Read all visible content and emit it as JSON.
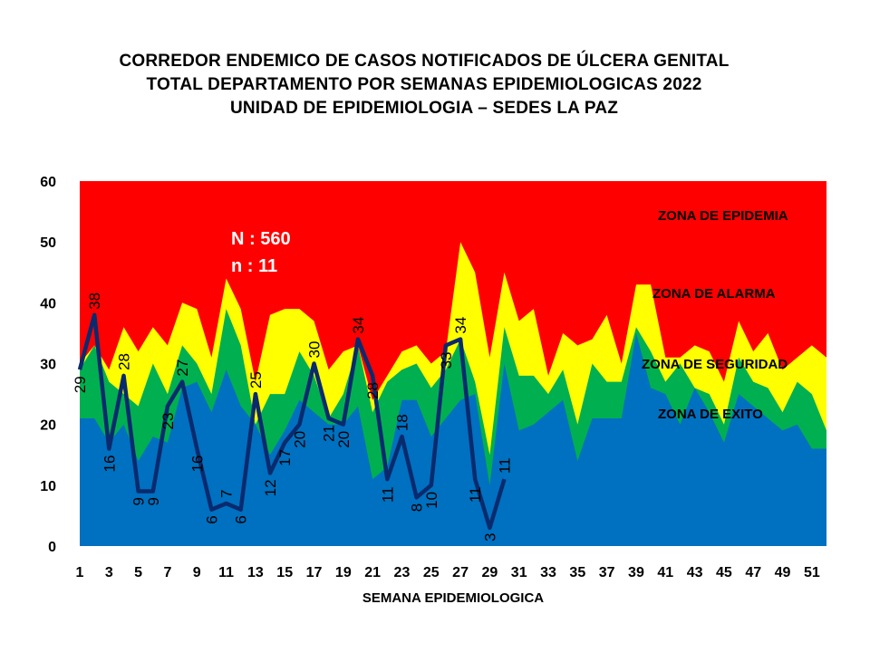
{
  "header": {
    "line1": "CORREDOR ENDEMICO  DE CASOS NOTIFICADOS  DE ÚLCERA GENITAL",
    "line2": "TOTAL DEPARTAMENTO  POR SEMANAS  EPIDEMIOLOGICAS  2022",
    "line3": "UNIDAD  DE EPIDEMIOLOGIA  – SEDES LA PAZ"
  },
  "chart_data": {
    "type": "area",
    "xlabel": "SEMANA EPIDEMIOLOGICA",
    "ylabel": "",
    "ylim": [
      0,
      60
    ],
    "yticks": [
      0,
      10,
      20,
      30,
      40,
      50,
      60
    ],
    "xticks": [
      1,
      3,
      5,
      7,
      9,
      11,
      13,
      15,
      17,
      19,
      21,
      23,
      25,
      27,
      29,
      31,
      33,
      35,
      37,
      39,
      41,
      43,
      45,
      47,
      49,
      51
    ],
    "x": [
      1,
      2,
      3,
      4,
      5,
      6,
      7,
      8,
      9,
      10,
      11,
      12,
      13,
      14,
      15,
      16,
      17,
      18,
      19,
      20,
      21,
      22,
      23,
      24,
      25,
      26,
      27,
      28,
      29,
      30,
      31,
      32,
      33,
      34,
      35,
      36,
      37,
      38,
      39,
      40,
      41,
      42,
      43,
      44,
      45,
      46,
      47,
      48,
      49,
      50,
      51,
      52
    ],
    "zones": {
      "epidemia_label": "ZONA DE EPIDEMIA",
      "alarma_label": "ZONA DE ALARMA",
      "seguridad_label": "ZONA DE  SEGURIDAD",
      "exito_label": "ZONA DE  EXITO",
      "epidemia_top": 60,
      "alarma": [
        30,
        33,
        29,
        36,
        32,
        36,
        33,
        40,
        39,
        31,
        44,
        39,
        27,
        38,
        39,
        39,
        37,
        29,
        32,
        33,
        24,
        28,
        32,
        33,
        30,
        32,
        50,
        45,
        31,
        45,
        37,
        39,
        28,
        35,
        33,
        34,
        38,
        30,
        43,
        43,
        31,
        31,
        33,
        32,
        27,
        37,
        32,
        35,
        29,
        31,
        33,
        31
      ],
      "seguridad": [
        29,
        33,
        27,
        25,
        23,
        30,
        25,
        33,
        30,
        25,
        39,
        33,
        20,
        25,
        25,
        32,
        28,
        21,
        25,
        33,
        22,
        27,
        29,
        30,
        26,
        29,
        34,
        27,
        15,
        36,
        28,
        28,
        25,
        29,
        20,
        30,
        27,
        27,
        36,
        32,
        27,
        30,
        26,
        25,
        20,
        31,
        27,
        26,
        22,
        27,
        25,
        19
      ],
      "exito": [
        21,
        21,
        17,
        20,
        14,
        18,
        17,
        26,
        27,
        22,
        29,
        23,
        20,
        15,
        19,
        24,
        22,
        20,
        20,
        23,
        11,
        13,
        24,
        24,
        18,
        21,
        24,
        25,
        10,
        30,
        19,
        20,
        22,
        24,
        14,
        21,
        21,
        21,
        35,
        26,
        25,
        20,
        26,
        22,
        17,
        25,
        23,
        21,
        19,
        20,
        16,
        16
      ]
    },
    "series": [
      {
        "name": "",
        "x": [
          1,
          2,
          3,
          4,
          5,
          6,
          7,
          8,
          9,
          10,
          11,
          12,
          13,
          14,
          15,
          16,
          17,
          18,
          19,
          20,
          21,
          22,
          23,
          24,
          25,
          26,
          27,
          28,
          29,
          30
        ],
        "values": [
          29,
          38,
          16,
          28,
          9,
          9,
          23,
          27,
          16,
          6,
          7,
          6,
          25,
          12,
          17,
          20,
          30,
          21,
          20,
          34,
          28,
          11,
          18,
          8,
          10,
          33,
          34,
          11,
          3,
          11
        ]
      }
    ],
    "annotations": {
      "N": "N : 560",
      "n": "n : 11"
    },
    "colors": {
      "epidemia": "#ff0000",
      "alarma": "#ffff00",
      "seguridad": "#00b050",
      "exito": "#0070c0",
      "line": "#0a2a6e"
    }
  }
}
